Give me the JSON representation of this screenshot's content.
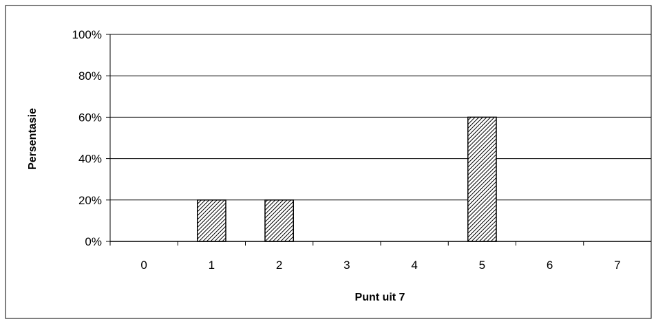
{
  "chart_data": {
    "type": "bar",
    "title": "",
    "xlabel": "Punt uit 7",
    "ylabel": "Persentasie",
    "categories": [
      "0",
      "1",
      "2",
      "3",
      "4",
      "5",
      "6",
      "7"
    ],
    "values": [
      0,
      20,
      20,
      0,
      0,
      60,
      0,
      0
    ],
    "ylim": [
      0,
      100
    ],
    "yticks": [
      "0%",
      "20%",
      "40%",
      "60%",
      "80%",
      "100%"
    ],
    "grid": true,
    "legend": "none",
    "bar_fill": "hatched",
    "colors": {
      "bar_stroke": "#000000",
      "grid": "#000000",
      "background": "#ffffff"
    }
  }
}
